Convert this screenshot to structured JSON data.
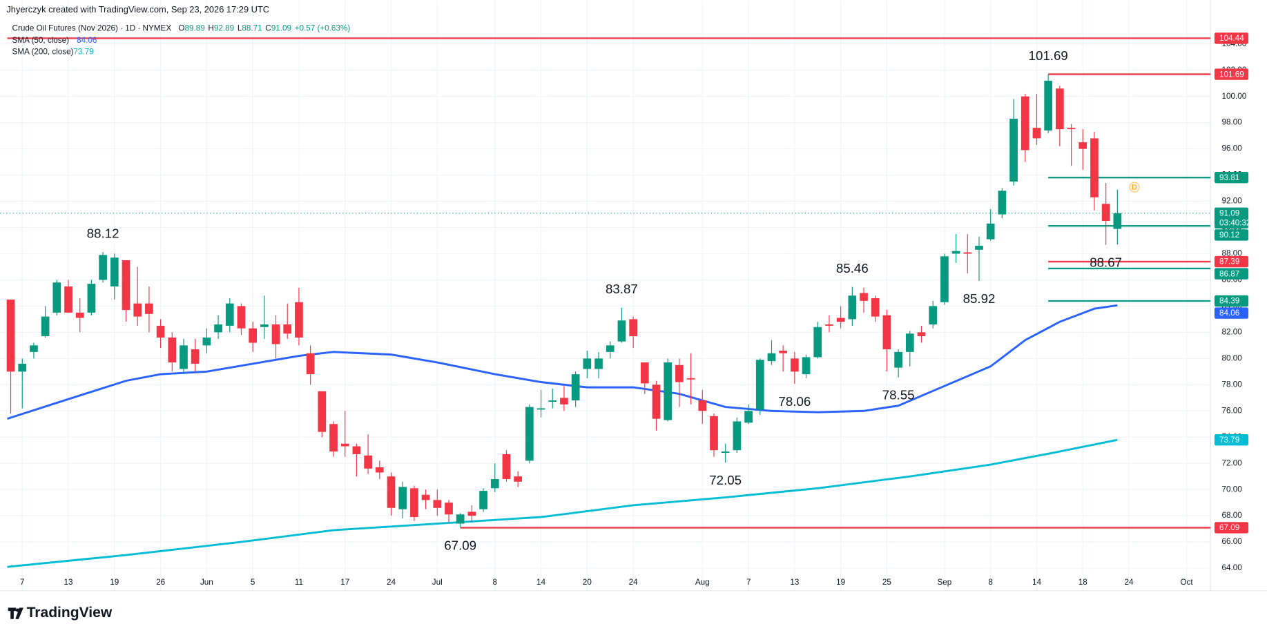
{
  "header": {
    "credit": "Jhyerczyk created with TradingView.com, Sep 23, 2026 17:29 UTC",
    "symbol": "Crude Oil Futures (Nov 2026) · 1D · NYMEX",
    "ohlc_prefixes": [
      "O",
      "H",
      "L",
      "C"
    ],
    "change": "+0.57 (+0.63%)"
  },
  "footer": {
    "brand": "TradingView"
  },
  "chart_data": {
    "type": "candlestick",
    "up_color": "#089981",
    "down_color": "#f23645",
    "x": [
      0,
      1,
      2,
      3,
      4,
      5,
      6,
      7,
      8,
      9,
      10,
      11,
      12,
      13,
      14,
      15,
      16,
      17,
      18,
      19,
      20,
      21,
      22,
      23,
      24,
      25,
      26,
      27,
      28,
      29,
      30,
      31,
      32,
      33,
      34,
      35,
      36,
      37,
      38,
      39,
      40,
      41,
      42,
      43,
      44,
      45,
      46,
      47,
      48,
      49,
      50,
      51,
      52,
      53,
      54,
      55,
      56,
      57,
      58,
      59,
      60,
      61,
      62,
      63,
      64,
      65,
      66,
      67,
      68,
      69,
      70,
      71,
      72,
      73,
      74,
      75,
      76,
      77,
      78,
      79,
      80,
      81,
      82,
      83,
      84,
      85,
      86,
      87,
      88,
      89,
      90,
      91,
      92,
      93,
      94,
      95,
      96
    ],
    "open": [
      84.5,
      79,
      80.5,
      81.7,
      83.5,
      85.5,
      83.5,
      83.5,
      86,
      85.5,
      87.5,
      84.2,
      84.2,
      82.5,
      81.6,
      79.2,
      80.7,
      81,
      82,
      82.5,
      84,
      82.3,
      82.4,
      82.6,
      82.6,
      84.3,
      80.4,
      77.5,
      75,
      73.5,
      73.3,
      72.6,
      71.7,
      71,
      68.5,
      70.1,
      69.6,
      69.2,
      69,
      67.4,
      68.3,
      68.5,
      70.1,
      72.7,
      71,
      72.2,
      76.1,
      76.7,
      77,
      76.8,
      79.2,
      79.2,
      80.5,
      81.3,
      83,
      79.7,
      78,
      75.3,
      79.5,
      78.5,
      76.8,
      75.6,
      72.8,
      73,
      75.1,
      76.1,
      79.8,
      80.6,
      80,
      78.8,
      80.1,
      82.6,
      83.1,
      83,
      85,
      84.6,
      83.3,
      79.3,
      80.5,
      82,
      82.6,
      84.3,
      88,
      88.1,
      88.3,
      89.1,
      91,
      93.5,
      100,
      97.6,
      97.4,
      100.6,
      97.6,
      96.5,
      96.8,
      91.8,
      89.89
    ],
    "high": [
      84.5,
      80,
      81.2,
      84,
      86,
      86,
      84.6,
      86,
      88.12,
      88,
      87.5,
      87,
      85.5,
      83,
      82,
      81.5,
      81.5,
      82.3,
      83.3,
      84.6,
      84.2,
      82.8,
      84.8,
      83.3,
      84.2,
      85.4,
      81,
      77.5,
      75.2,
      76,
      73.5,
      74.2,
      72.2,
      71.3,
      70.6,
      70.3,
      70,
      70,
      69.2,
      68.2,
      68.8,
      70.1,
      72,
      73,
      71.4,
      76.5,
      77.6,
      77.7,
      77.9,
      79,
      80.6,
      80.5,
      81.3,
      83.87,
      83.2,
      79.7,
      78.3,
      80,
      80,
      80.4,
      77.6,
      75.8,
      73.5,
      75.5,
      76.5,
      80,
      81.4,
      81,
      80.5,
      80.3,
      82.8,
      83.3,
      84,
      85.46,
      85.4,
      84.8,
      83.7,
      80.7,
      82.1,
      82.5,
      84.4,
      88,
      89.5,
      89.5,
      89.3,
      91.4,
      93,
      99.8,
      100.2,
      100.2,
      101.69,
      100.8,
      97.9,
      97.5,
      97.3,
      93.4,
      92.89
    ],
    "low": [
      75.8,
      76.2,
      80,
      81.6,
      83.3,
      83.5,
      82,
      83.3,
      85.8,
      84.5,
      82.8,
      82.5,
      82,
      80.8,
      79,
      78.8,
      79,
      80.4,
      81.5,
      82,
      81.8,
      80.5,
      81.5,
      80,
      81.5,
      81,
      78,
      74,
      72.5,
      72.5,
      71,
      71.2,
      70.8,
      68,
      67.8,
      67.6,
      68.5,
      68,
      67.5,
      67.09,
      67.5,
      68.3,
      69.8,
      70.6,
      70.2,
      72,
      75.5,
      76.2,
      76,
      76.3,
      78.5,
      78.5,
      80,
      81.2,
      80.8,
      77.3,
      74.5,
      75.2,
      76.3,
      76.5,
      75,
      72.5,
      72.05,
      72.8,
      75,
      75.7,
      79.5,
      79,
      78.06,
      78.5,
      80,
      82,
      82.3,
      82.5,
      83.5,
      82.8,
      79,
      78.55,
      79.4,
      81.2,
      82.3,
      84.1,
      87.3,
      86.5,
      85.92,
      89,
      90.7,
      93.2,
      95,
      96.3,
      97.2,
      96.2,
      94.7,
      94.4,
      91.3,
      88.67,
      88.71
    ],
    "close": [
      79,
      79.6,
      81,
      83.2,
      85.8,
      83.5,
      83.1,
      85.7,
      87.9,
      87.7,
      83.7,
      83.2,
      83.4,
      81.6,
      79.7,
      81,
      79.6,
      81.6,
      82.6,
      84.2,
      82.3,
      81.2,
      82.6,
      81.1,
      81.9,
      81.6,
      78.8,
      74.4,
      72.9,
      73.3,
      72.7,
      71.6,
      71.3,
      68.6,
      70.2,
      67.9,
      69.2,
      68.6,
      68.1,
      68.1,
      68,
      69.9,
      70.8,
      70.8,
      70.6,
      76.3,
      76.2,
      76.8,
      76.5,
      78.8,
      80,
      80,
      81,
      82.9,
      81.7,
      78.1,
      75.4,
      79.7,
      78.2,
      78.4,
      76,
      73,
      72.9,
      75.2,
      76,
      79.9,
      80.4,
      80.4,
      79,
      80.1,
      82.4,
      82.5,
      82.8,
      84.8,
      84.4,
      83.2,
      80.7,
      80.5,
      81.9,
      81.7,
      84,
      87.8,
      88.2,
      88,
      88.6,
      90.3,
      92.8,
      98.3,
      95.9,
      96.8,
      101.2,
      97.5,
      97.5,
      96,
      92.3,
      90.5,
      91.09
    ],
    "countdown": "03:40:32",
    "lines": [
      {
        "name": "SMA (200, close)",
        "color": "#00bcd4",
        "x": [
          -0.3,
          10,
          20,
          28,
          37,
          46,
          54,
          62,
          70,
          78,
          85,
          91,
          96
        ],
        "values": [
          64.1,
          65,
          66,
          66.9,
          67.4,
          67.9,
          68.8,
          69.4,
          70.1,
          71,
          71.9,
          72.9,
          73.79
        ]
      },
      {
        "name": "SMA (50, close)",
        "color": "#2962ff",
        "x": [
          -0.3,
          5,
          10,
          13,
          17,
          21,
          25,
          28,
          33,
          37,
          42,
          46,
          50,
          54,
          58,
          62,
          66,
          70,
          74,
          77,
          81,
          85,
          88,
          91,
          94,
          96
        ],
        "values": [
          75.4,
          76.9,
          78.3,
          78.8,
          79,
          79.6,
          80.2,
          80.5,
          80.3,
          79.7,
          78.8,
          78.2,
          77.8,
          77.8,
          77.3,
          76.3,
          76,
          75.9,
          76,
          76.4,
          77.9,
          79.4,
          81.4,
          82.8,
          83.8,
          84.06
        ]
      }
    ],
    "levels": [
      {
        "value": 104.44,
        "color": "#f23645",
        "from": -0.3
      },
      {
        "value": 101.69,
        "color": "#f23645",
        "from": 90
      },
      {
        "value": 93.81,
        "color": "#089981",
        "from": 90
      },
      {
        "value": 90.12,
        "color": "#089981",
        "from": 90
      },
      {
        "value": 87.39,
        "color": "#f23645",
        "from": 90
      },
      {
        "value": 86.87,
        "color": "#089981",
        "from": 90
      },
      {
        "value": 84.39,
        "color": "#089981",
        "from": 90
      },
      {
        "value": 67.09,
        "color": "#f23645",
        "from": 39
      }
    ],
    "annotations": [
      {
        "text": "88.12",
        "index": 8,
        "position": "above"
      },
      {
        "text": "83.87",
        "index": 53,
        "position": "above"
      },
      {
        "text": "85.46",
        "index": 73,
        "position": "above"
      },
      {
        "text": "101.69",
        "index": 90,
        "position": "above"
      },
      {
        "text": "67.09",
        "index": 39,
        "position": "below"
      },
      {
        "text": "72.05",
        "index": 62,
        "position": "below"
      },
      {
        "text": "78.06",
        "index": 68,
        "position": "below"
      },
      {
        "text": "78.55",
        "index": 77,
        "position": "below"
      },
      {
        "text": "85.92",
        "index": 84,
        "position": "below"
      },
      {
        "text": "88.67",
        "index": 95,
        "position": "below"
      }
    ],
    "marker_text": "D",
    "xlim": [
      -0.3,
      104
    ],
    "ylim": [
      63.57,
      107.34
    ],
    "xticks": [
      {
        "value": 1,
        "label": "7"
      },
      {
        "value": 5,
        "label": "13"
      },
      {
        "value": 9,
        "label": "19"
      },
      {
        "value": 13,
        "label": "26"
      },
      {
        "value": 17,
        "label": "Jun"
      },
      {
        "value": 21,
        "label": "5"
      },
      {
        "value": 25,
        "label": "11"
      },
      {
        "value": 29,
        "label": "17"
      },
      {
        "value": 33,
        "label": "24"
      },
      {
        "value": 37,
        "label": "Jul"
      },
      {
        "value": 42,
        "label": "8"
      },
      {
        "value": 46,
        "label": "14"
      },
      {
        "value": 50,
        "label": "20"
      },
      {
        "value": 54,
        "label": "24"
      },
      {
        "value": 60,
        "label": "Aug"
      },
      {
        "value": 64,
        "label": "7"
      },
      {
        "value": 68,
        "label": "13"
      },
      {
        "value": 72,
        "label": "19"
      },
      {
        "value": 76,
        "label": "25"
      },
      {
        "value": 81,
        "label": "Sep"
      },
      {
        "value": 85,
        "label": "8"
      },
      {
        "value": 89,
        "label": "14"
      },
      {
        "value": 93,
        "label": "18"
      },
      {
        "value": 97,
        "label": "24"
      },
      {
        "value": 102,
        "label": "Oct"
      }
    ],
    "yticks": [
      {
        "value": 64,
        "label": "64.00"
      },
      {
        "value": 66,
        "label": "66.00"
      },
      {
        "value": 68,
        "label": "68.00"
      },
      {
        "value": 70,
        "label": "70.00"
      },
      {
        "value": 72,
        "label": "72.00"
      },
      {
        "value": 74,
        "label": "74.00"
      },
      {
        "value": 76,
        "label": "76.00"
      },
      {
        "value": 78,
        "label": "78.00"
      },
      {
        "value": 80,
        "label": "80.00"
      },
      {
        "value": 82,
        "label": "82.00"
      },
      {
        "value": 84,
        "label": "84.00"
      },
      {
        "value": 86,
        "label": "86.00"
      },
      {
        "value": 88,
        "label": "88.00"
      },
      {
        "value": 90,
        "label": "90.00"
      },
      {
        "value": 92,
        "label": "92.00"
      },
      {
        "value": 94,
        "label": "94.00"
      },
      {
        "value": 96,
        "label": "96.00"
      },
      {
        "value": 98,
        "label": "98.00"
      },
      {
        "value": 100,
        "label": "100.00"
      },
      {
        "value": 102,
        "label": "102.00"
      },
      {
        "value": 104,
        "label": "104.00"
      }
    ],
    "grid": true
  }
}
